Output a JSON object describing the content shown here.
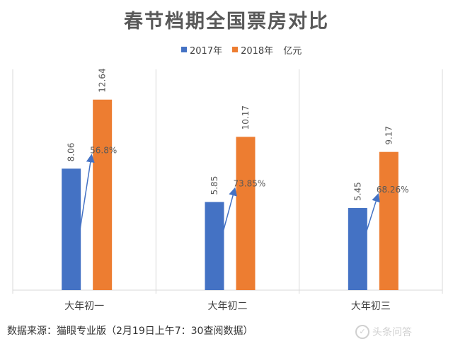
{
  "chart_data": {
    "type": "bar",
    "title": "春节档期全国票房对比",
    "unit": "亿元",
    "categories": [
      "大年初一",
      "大年初二",
      "大年初三"
    ],
    "series": [
      {
        "name": "2017年",
        "color": "#4472C4",
        "values": [
          8.06,
          5.85,
          5.45
        ],
        "labels": [
          "8.06",
          "5.85",
          "5.45"
        ]
      },
      {
        "name": "2018年",
        "color": "#ED7D31",
        "values": [
          12.64,
          10.17,
          9.17
        ],
        "labels": [
          "12.64",
          "10.17",
          "9.17"
        ]
      }
    ],
    "growth_labels": [
      "56.8%",
      "73.85%",
      "68.26%"
    ],
    "ylim": [
      0,
      15
    ],
    "grid": false,
    "legend_position": "top"
  },
  "legend_unit": "亿元",
  "source_note": "数据来源：猫眼专业版（2月19日上午7：30查阅数据）",
  "watermark": "头条问答",
  "colors": {
    "axis": "#D9D9D9",
    "arrow": "#4472C4",
    "label": "#595959"
  }
}
